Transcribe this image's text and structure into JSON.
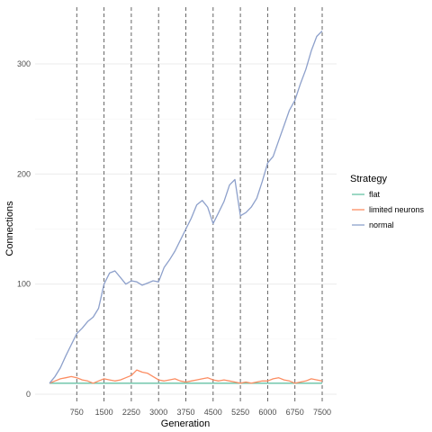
{
  "chart_data": {
    "type": "line",
    "title": "",
    "xlabel": "Generation",
    "ylabel": "Connections",
    "xlim": [
      0,
      7500
    ],
    "ylim": [
      0,
      345
    ],
    "x_ticks": [
      750,
      1500,
      2250,
      3000,
      3750,
      4500,
      5250,
      6000,
      6750,
      7500
    ],
    "y_ticks": [
      0,
      100,
      200,
      300
    ],
    "vlines": [
      750,
      1500,
      2250,
      3000,
      3750,
      4500,
      5250,
      6000,
      6750,
      7500
    ],
    "grid": true,
    "legend": {
      "title": "Strategy",
      "position": "right"
    },
    "series": [
      {
        "name": "flat",
        "color": "#66c2a5",
        "x": [
          0,
          7500
        ],
        "y": [
          10,
          10
        ]
      },
      {
        "name": "limited neurons",
        "color": "#fc8d62",
        "x": [
          0,
          150,
          300,
          450,
          600,
          750,
          900,
          1050,
          1200,
          1350,
          1500,
          1650,
          1800,
          1950,
          2100,
          2250,
          2400,
          2550,
          2700,
          2850,
          3000,
          3150,
          3300,
          3450,
          3600,
          3750,
          3900,
          4050,
          4200,
          4350,
          4500,
          4650,
          4800,
          4950,
          5100,
          5250,
          5400,
          5550,
          5700,
          5850,
          6000,
          6150,
          6300,
          6450,
          6600,
          6750,
          6900,
          7050,
          7200,
          7350,
          7500
        ],
        "y": [
          10,
          12,
          14,
          15,
          16,
          15,
          13,
          12,
          10,
          12,
          14,
          13,
          12,
          13,
          15,
          17,
          22,
          20,
          19,
          16,
          13,
          12,
          13,
          14,
          12,
          11,
          12,
          13,
          14,
          15,
          13,
          12,
          13,
          12,
          11,
          10,
          11,
          10,
          11,
          12,
          12,
          14,
          15,
          13,
          12,
          10,
          11,
          12,
          14,
          13,
          12
        ]
      },
      {
        "name": "normal",
        "color": "#8da0cb",
        "x": [
          0,
          150,
          300,
          450,
          600,
          750,
          900,
          1050,
          1200,
          1350,
          1500,
          1650,
          1800,
          1950,
          2100,
          2250,
          2400,
          2550,
          2700,
          2850,
          3000,
          3150,
          3300,
          3450,
          3600,
          3750,
          3900,
          4050,
          4200,
          4350,
          4500,
          4650,
          4800,
          4950,
          5100,
          5250,
          5400,
          5550,
          5700,
          5850,
          6000,
          6150,
          6300,
          6450,
          6600,
          6750,
          6900,
          7050,
          7200,
          7350,
          7500
        ],
        "y": [
          10,
          16,
          24,
          35,
          45,
          55,
          60,
          66,
          70,
          78,
          100,
          110,
          112,
          106,
          100,
          103,
          102,
          99,
          101,
          103,
          102,
          115,
          122,
          130,
          140,
          150,
          160,
          172,
          176,
          170,
          155,
          165,
          175,
          190,
          195,
          162,
          165,
          170,
          178,
          193,
          210,
          216,
          230,
          244,
          258,
          267,
          282,
          295,
          312,
          325,
          330
        ]
      }
    ]
  }
}
